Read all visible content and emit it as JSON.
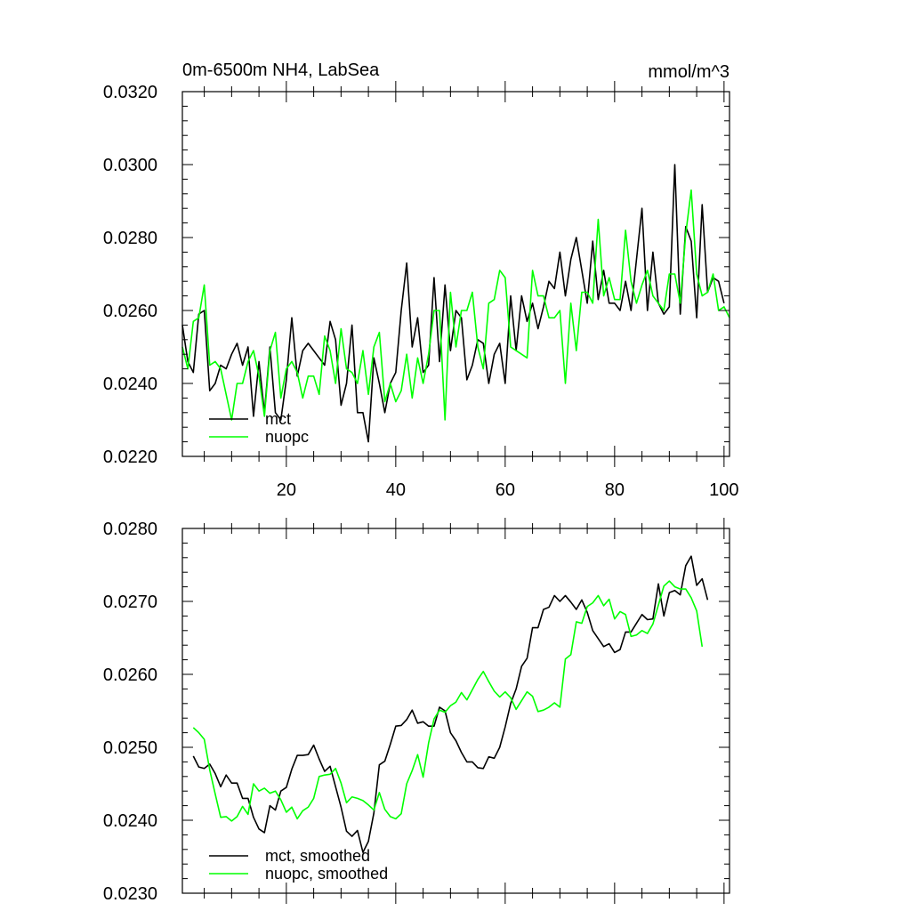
{
  "chart_data": [
    {
      "type": "line",
      "title": "0m-6500m NH4, LabSea",
      "units": "mmol/m^3",
      "xlabel": "",
      "ylabel": "",
      "xlim": [
        1,
        101
      ],
      "ylim": [
        0.022,
        0.032
      ],
      "yticks": [
        0.022,
        0.024,
        0.026,
        0.028,
        0.03,
        0.032
      ],
      "ytick_labels": [
        "0.0220",
        "0.0240",
        "0.0260",
        "0.0280",
        "0.0300",
        "0.0320"
      ],
      "xticks": [
        20,
        40,
        60,
        80,
        100
      ],
      "xtick_labels": [
        "20",
        "40",
        "60",
        "80",
        "100"
      ],
      "legend_position": "bottom-left",
      "series": [
        {
          "name": "mct",
          "color": "#000000",
          "x_start": 1,
          "values": [
            0.0256,
            0.0246,
            0.0243,
            0.0259,
            0.026,
            0.0238,
            0.024,
            0.0245,
            0.0244,
            0.0248,
            0.0251,
            0.0245,
            0.025,
            0.0231,
            0.0246,
            0.0232,
            0.025,
            0.0232,
            0.023,
            0.0241,
            0.0258,
            0.0242,
            0.0249,
            0.0251,
            0.0249,
            0.0247,
            0.0245,
            0.0257,
            0.0252,
            0.0234,
            0.024,
            0.0256,
            0.0232,
            0.0232,
            0.0224,
            0.0247,
            0.024,
            0.0232,
            0.024,
            0.0243,
            0.026,
            0.0273,
            0.025,
            0.0258,
            0.0243,
            0.0245,
            0.0269,
            0.0246,
            0.0267,
            0.0249,
            0.026,
            0.0258,
            0.0241,
            0.0245,
            0.0252,
            0.0251,
            0.024,
            0.0248,
            0.0251,
            0.024,
            0.0264,
            0.0249,
            0.0264,
            0.0257,
            0.0262,
            0.0255,
            0.0261,
            0.0268,
            0.0266,
            0.0276,
            0.0264,
            0.0274,
            0.028,
            0.0271,
            0.0262,
            0.0279,
            0.0263,
            0.0271,
            0.0262,
            0.0262,
            0.026,
            0.0268,
            0.026,
            0.0274,
            0.0288,
            0.026,
            0.0276,
            0.0262,
            0.0259,
            0.0261,
            0.03,
            0.0259,
            0.0283,
            0.0279,
            0.0258,
            0.0289,
            0.0265,
            0.0269,
            0.0268,
            0.0262
          ]
        },
        {
          "name": "nuopc",
          "color": "#00ff00",
          "x_start": 1,
          "values": [
            0.025,
            0.0244,
            0.0257,
            0.0258,
            0.0267,
            0.0245,
            0.0246,
            0.0244,
            0.0237,
            0.023,
            0.024,
            0.024,
            0.0246,
            0.0249,
            0.0242,
            0.0231,
            0.0249,
            0.0254,
            0.0236,
            0.0244,
            0.0246,
            0.0243,
            0.0236,
            0.0242,
            0.0242,
            0.0237,
            0.0253,
            0.0249,
            0.024,
            0.0255,
            0.0244,
            0.0243,
            0.024,
            0.0249,
            0.0237,
            0.025,
            0.0254,
            0.0235,
            0.024,
            0.0235,
            0.0238,
            0.0248,
            0.0236,
            0.0247,
            0.024,
            0.0248,
            0.026,
            0.026,
            0.023,
            0.0265,
            0.025,
            0.026,
            0.026,
            0.0265,
            0.025,
            0.0244,
            0.0262,
            0.0263,
            0.0271,
            0.0269,
            0.025,
            0.0249,
            0.0248,
            0.0247,
            0.0271,
            0.0264,
            0.0264,
            0.0258,
            0.0258,
            0.026,
            0.024,
            0.0262,
            0.0249,
            0.0265,
            0.0265,
            0.0262,
            0.0285,
            0.0264,
            0.0269,
            0.0263,
            0.0263,
            0.0282,
            0.0268,
            0.0262,
            0.0267,
            0.0271,
            0.0264,
            0.0262,
            0.026,
            0.027,
            0.027,
            0.0262,
            0.0281,
            0.0293,
            0.027,
            0.0264,
            0.0265,
            0.027,
            0.026,
            0.0261,
            0.0258
          ]
        }
      ]
    },
    {
      "type": "line",
      "title": "",
      "xlabel": "",
      "ylabel": "",
      "xlim": [
        1,
        101
      ],
      "ylim": [
        0.023,
        0.028
      ],
      "yticks": [
        0.023,
        0.024,
        0.025,
        0.026,
        0.027,
        0.028
      ],
      "ytick_labels": [
        "0.0230",
        "0.0240",
        "0.0250",
        "0.0260",
        "0.0270",
        "0.0280"
      ],
      "xticks": [
        20,
        40,
        60,
        80,
        100
      ],
      "xtick_labels": [],
      "legend_position": "bottom-left",
      "series": [
        {
          "name": "mct, smoothed",
          "color": "#000000",
          "x_start": 3,
          "values": [
            0.02488,
            0.02473,
            0.02471,
            0.02477,
            0.02464,
            0.02446,
            0.02462,
            0.02451,
            0.02451,
            0.0243,
            0.0243,
            0.02404,
            0.02388,
            0.02383,
            0.0242,
            0.02414,
            0.0244,
            0.02445,
            0.0247,
            0.02489,
            0.02489,
            0.0249,
            0.02503,
            0.02484,
            0.02467,
            0.02474,
            0.02446,
            0.02418,
            0.02385,
            0.02378,
            0.02386,
            0.02356,
            0.02371,
            0.0241,
            0.02476,
            0.02481,
            0.02504,
            0.02529,
            0.0253,
            0.02538,
            0.02551,
            0.02533,
            0.02535,
            0.02529,
            0.02529,
            0.02555,
            0.0255,
            0.0252,
            0.02509,
            0.02493,
            0.0248,
            0.0248,
            0.02472,
            0.02471,
            0.02487,
            0.02485,
            0.025,
            0.02528,
            0.0256,
            0.0258,
            0.02611,
            0.02622,
            0.02664,
            0.02664,
            0.02689,
            0.02692,
            0.02708,
            0.027,
            0.02708,
            0.02699,
            0.02689,
            0.02702,
            0.02685,
            0.0266,
            0.02649,
            0.02638,
            0.02642,
            0.0263,
            0.02634,
            0.02658,
            0.02658,
            0.0267,
            0.02682,
            0.02675,
            0.02676,
            0.02724,
            0.0268,
            0.02712,
            0.02715,
            0.02709,
            0.02749,
            0.02762,
            0.02722,
            0.02731,
            0.02702
          ]
        },
        {
          "name": "nuopc, smoothed",
          "color": "#00ff00",
          "x_start": 3,
          "values": [
            0.02527,
            0.0252,
            0.02511,
            0.02469,
            0.02436,
            0.02404,
            0.02405,
            0.02399,
            0.02405,
            0.02419,
            0.02408,
            0.0245,
            0.0244,
            0.02444,
            0.02437,
            0.0244,
            0.02428,
            0.02411,
            0.02418,
            0.02402,
            0.02413,
            0.02418,
            0.0243,
            0.0246,
            0.02462,
            0.02463,
            0.02471,
            0.02451,
            0.02424,
            0.02432,
            0.0243,
            0.02427,
            0.02421,
            0.02414,
            0.02438,
            0.02415,
            0.02405,
            0.02402,
            0.02409,
            0.0245,
            0.02468,
            0.0249,
            0.02459,
            0.02506,
            0.02539,
            0.02551,
            0.02548,
            0.02557,
            0.02562,
            0.02575,
            0.02565,
            0.02579,
            0.02593,
            0.02604,
            0.0259,
            0.02577,
            0.02569,
            0.02576,
            0.02568,
            0.02552,
            0.02564,
            0.02576,
            0.0257,
            0.02549,
            0.02551,
            0.02555,
            0.02561,
            0.02555,
            0.02621,
            0.02627,
            0.02672,
            0.0267,
            0.02693,
            0.02698,
            0.02708,
            0.02694,
            0.02703,
            0.02676,
            0.02686,
            0.02682,
            0.02652,
            0.02654,
            0.0266,
            0.02656,
            0.02669,
            0.02695,
            0.02721,
            0.02728,
            0.0272,
            0.02717,
            0.02717,
            0.02705,
            0.02687,
            0.02638
          ]
        }
      ]
    }
  ]
}
